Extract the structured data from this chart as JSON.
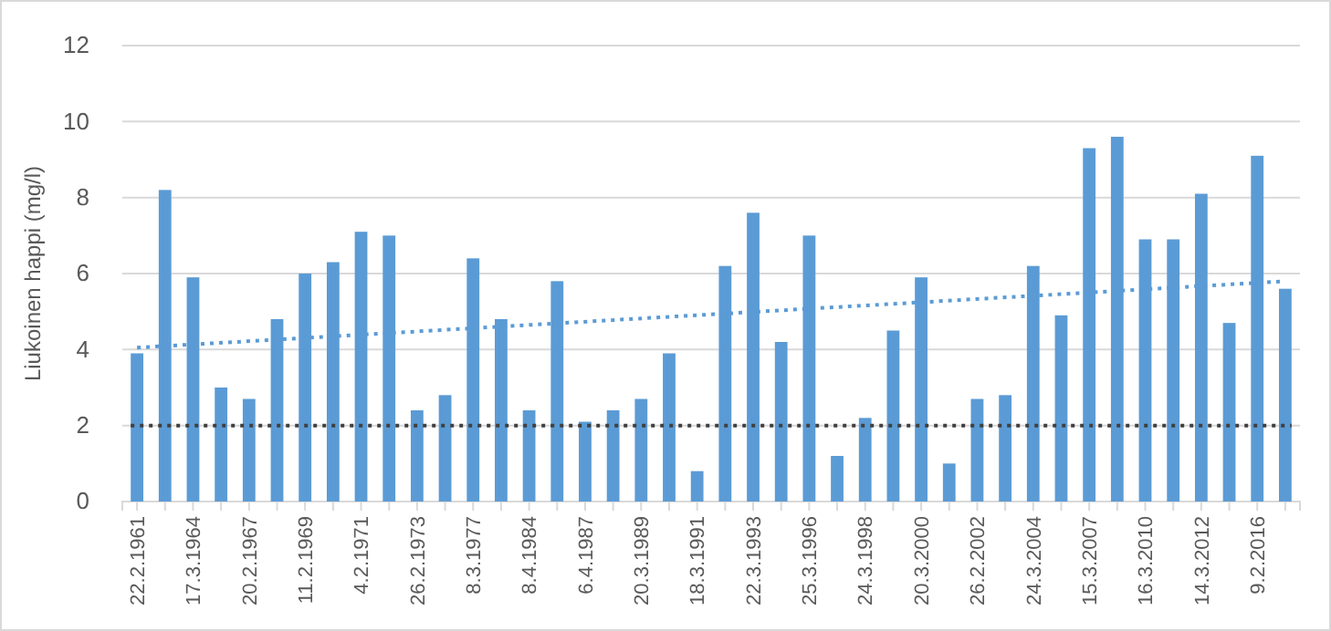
{
  "chart_data": {
    "type": "bar",
    "ylabel": "Liukoinen happi (mg/l)",
    "categories": [
      "22.2.1961",
      null,
      "17.3.1964",
      null,
      "20.2.1967",
      null,
      "11.2.1969",
      null,
      "4.2.1971",
      null,
      "26.2.1973",
      null,
      "8.3.1977",
      null,
      "8.4.1984",
      null,
      "6.4.1987",
      null,
      "20.3.1989",
      null,
      "18.3.1991",
      null,
      "22.3.1993",
      null,
      "25.3.1996",
      null,
      "24.3.1998",
      null,
      "20.3.2000",
      null,
      "26.2.2002",
      null,
      "24.3.2004",
      null,
      "15.3.2007",
      null,
      "16.3.2010",
      null,
      "14.3.2012",
      null,
      "9.2.2016",
      null
    ],
    "series": [
      {
        "color": "#5b9bd5",
        "values": [
          3.9,
          8.2,
          5.9,
          3.0,
          2.7,
          4.8,
          6.0,
          6.3,
          7.1,
          7.0,
          2.4,
          2.8,
          6.4,
          4.8,
          2.4,
          5.8,
          2.1,
          2.4,
          2.7,
          3.9,
          0.8,
          6.2,
          7.6,
          4.2,
          7.0,
          1.2,
          2.2,
          4.5,
          5.9,
          1.0,
          2.7,
          2.8,
          6.2,
          4.9,
          9.3,
          9.6,
          6.9,
          6.9,
          8.1,
          4.7,
          9.1,
          5.6
        ]
      },
      {
        "type": "line",
        "color": "#5b9bd5",
        "line_style": "dotted",
        "values": [
          4.05,
          null,
          null,
          null,
          null,
          null,
          null,
          null,
          null,
          null,
          null,
          null,
          null,
          null,
          null,
          null,
          null,
          null,
          null,
          null,
          null,
          null,
          null,
          null,
          null,
          null,
          null,
          null,
          null,
          null,
          null,
          null,
          null,
          null,
          null,
          null,
          null,
          null,
          null,
          null,
          null,
          5.8
        ]
      }
    ],
    "ylim": [
      0,
      12
    ],
    "yticks": [
      0,
      2,
      4,
      6,
      8,
      10,
      12
    ],
    "grid": "y",
    "ref_lines": [
      {
        "axis": "y",
        "value": 2,
        "color": "#404040",
        "line_style": "dotted"
      }
    ]
  }
}
